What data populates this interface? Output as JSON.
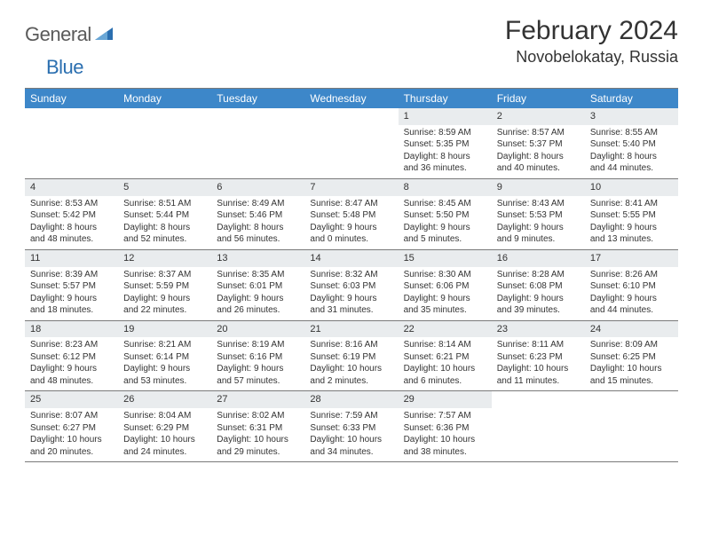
{
  "logo": {
    "part1": "General",
    "part2": "Blue"
  },
  "title": "February 2024",
  "location": "Novobelokatay, Russia",
  "colors": {
    "headerBg": "#3d87c9",
    "dayNumBg": "#e9ecee",
    "border": "#7a7a7a",
    "text": "#333333",
    "logoGray": "#5a5a5a",
    "logoBlue": "#2b6fb0"
  },
  "dayHeaders": [
    "Sunday",
    "Monday",
    "Tuesday",
    "Wednesday",
    "Thursday",
    "Friday",
    "Saturday"
  ],
  "weeks": [
    [
      {
        "num": "",
        "sunrise": "",
        "sunset": "",
        "daylight": ""
      },
      {
        "num": "",
        "sunrise": "",
        "sunset": "",
        "daylight": ""
      },
      {
        "num": "",
        "sunrise": "",
        "sunset": "",
        "daylight": ""
      },
      {
        "num": "",
        "sunrise": "",
        "sunset": "",
        "daylight": ""
      },
      {
        "num": "1",
        "sunrise": "Sunrise: 8:59 AM",
        "sunset": "Sunset: 5:35 PM",
        "daylight": "Daylight: 8 hours and 36 minutes."
      },
      {
        "num": "2",
        "sunrise": "Sunrise: 8:57 AM",
        "sunset": "Sunset: 5:37 PM",
        "daylight": "Daylight: 8 hours and 40 minutes."
      },
      {
        "num": "3",
        "sunrise": "Sunrise: 8:55 AM",
        "sunset": "Sunset: 5:40 PM",
        "daylight": "Daylight: 8 hours and 44 minutes."
      }
    ],
    [
      {
        "num": "4",
        "sunrise": "Sunrise: 8:53 AM",
        "sunset": "Sunset: 5:42 PM",
        "daylight": "Daylight: 8 hours and 48 minutes."
      },
      {
        "num": "5",
        "sunrise": "Sunrise: 8:51 AM",
        "sunset": "Sunset: 5:44 PM",
        "daylight": "Daylight: 8 hours and 52 minutes."
      },
      {
        "num": "6",
        "sunrise": "Sunrise: 8:49 AM",
        "sunset": "Sunset: 5:46 PM",
        "daylight": "Daylight: 8 hours and 56 minutes."
      },
      {
        "num": "7",
        "sunrise": "Sunrise: 8:47 AM",
        "sunset": "Sunset: 5:48 PM",
        "daylight": "Daylight: 9 hours and 0 minutes."
      },
      {
        "num": "8",
        "sunrise": "Sunrise: 8:45 AM",
        "sunset": "Sunset: 5:50 PM",
        "daylight": "Daylight: 9 hours and 5 minutes."
      },
      {
        "num": "9",
        "sunrise": "Sunrise: 8:43 AM",
        "sunset": "Sunset: 5:53 PM",
        "daylight": "Daylight: 9 hours and 9 minutes."
      },
      {
        "num": "10",
        "sunrise": "Sunrise: 8:41 AM",
        "sunset": "Sunset: 5:55 PM",
        "daylight": "Daylight: 9 hours and 13 minutes."
      }
    ],
    [
      {
        "num": "11",
        "sunrise": "Sunrise: 8:39 AM",
        "sunset": "Sunset: 5:57 PM",
        "daylight": "Daylight: 9 hours and 18 minutes."
      },
      {
        "num": "12",
        "sunrise": "Sunrise: 8:37 AM",
        "sunset": "Sunset: 5:59 PM",
        "daylight": "Daylight: 9 hours and 22 minutes."
      },
      {
        "num": "13",
        "sunrise": "Sunrise: 8:35 AM",
        "sunset": "Sunset: 6:01 PM",
        "daylight": "Daylight: 9 hours and 26 minutes."
      },
      {
        "num": "14",
        "sunrise": "Sunrise: 8:32 AM",
        "sunset": "Sunset: 6:03 PM",
        "daylight": "Daylight: 9 hours and 31 minutes."
      },
      {
        "num": "15",
        "sunrise": "Sunrise: 8:30 AM",
        "sunset": "Sunset: 6:06 PM",
        "daylight": "Daylight: 9 hours and 35 minutes."
      },
      {
        "num": "16",
        "sunrise": "Sunrise: 8:28 AM",
        "sunset": "Sunset: 6:08 PM",
        "daylight": "Daylight: 9 hours and 39 minutes."
      },
      {
        "num": "17",
        "sunrise": "Sunrise: 8:26 AM",
        "sunset": "Sunset: 6:10 PM",
        "daylight": "Daylight: 9 hours and 44 minutes."
      }
    ],
    [
      {
        "num": "18",
        "sunrise": "Sunrise: 8:23 AM",
        "sunset": "Sunset: 6:12 PM",
        "daylight": "Daylight: 9 hours and 48 minutes."
      },
      {
        "num": "19",
        "sunrise": "Sunrise: 8:21 AM",
        "sunset": "Sunset: 6:14 PM",
        "daylight": "Daylight: 9 hours and 53 minutes."
      },
      {
        "num": "20",
        "sunrise": "Sunrise: 8:19 AM",
        "sunset": "Sunset: 6:16 PM",
        "daylight": "Daylight: 9 hours and 57 minutes."
      },
      {
        "num": "21",
        "sunrise": "Sunrise: 8:16 AM",
        "sunset": "Sunset: 6:19 PM",
        "daylight": "Daylight: 10 hours and 2 minutes."
      },
      {
        "num": "22",
        "sunrise": "Sunrise: 8:14 AM",
        "sunset": "Sunset: 6:21 PM",
        "daylight": "Daylight: 10 hours and 6 minutes."
      },
      {
        "num": "23",
        "sunrise": "Sunrise: 8:11 AM",
        "sunset": "Sunset: 6:23 PM",
        "daylight": "Daylight: 10 hours and 11 minutes."
      },
      {
        "num": "24",
        "sunrise": "Sunrise: 8:09 AM",
        "sunset": "Sunset: 6:25 PM",
        "daylight": "Daylight: 10 hours and 15 minutes."
      }
    ],
    [
      {
        "num": "25",
        "sunrise": "Sunrise: 8:07 AM",
        "sunset": "Sunset: 6:27 PM",
        "daylight": "Daylight: 10 hours and 20 minutes."
      },
      {
        "num": "26",
        "sunrise": "Sunrise: 8:04 AM",
        "sunset": "Sunset: 6:29 PM",
        "daylight": "Daylight: 10 hours and 24 minutes."
      },
      {
        "num": "27",
        "sunrise": "Sunrise: 8:02 AM",
        "sunset": "Sunset: 6:31 PM",
        "daylight": "Daylight: 10 hours and 29 minutes."
      },
      {
        "num": "28",
        "sunrise": "Sunrise: 7:59 AM",
        "sunset": "Sunset: 6:33 PM",
        "daylight": "Daylight: 10 hours and 34 minutes."
      },
      {
        "num": "29",
        "sunrise": "Sunrise: 7:57 AM",
        "sunset": "Sunset: 6:36 PM",
        "daylight": "Daylight: 10 hours and 38 minutes."
      },
      {
        "num": "",
        "sunrise": "",
        "sunset": "",
        "daylight": ""
      },
      {
        "num": "",
        "sunrise": "",
        "sunset": "",
        "daylight": ""
      }
    ]
  ]
}
